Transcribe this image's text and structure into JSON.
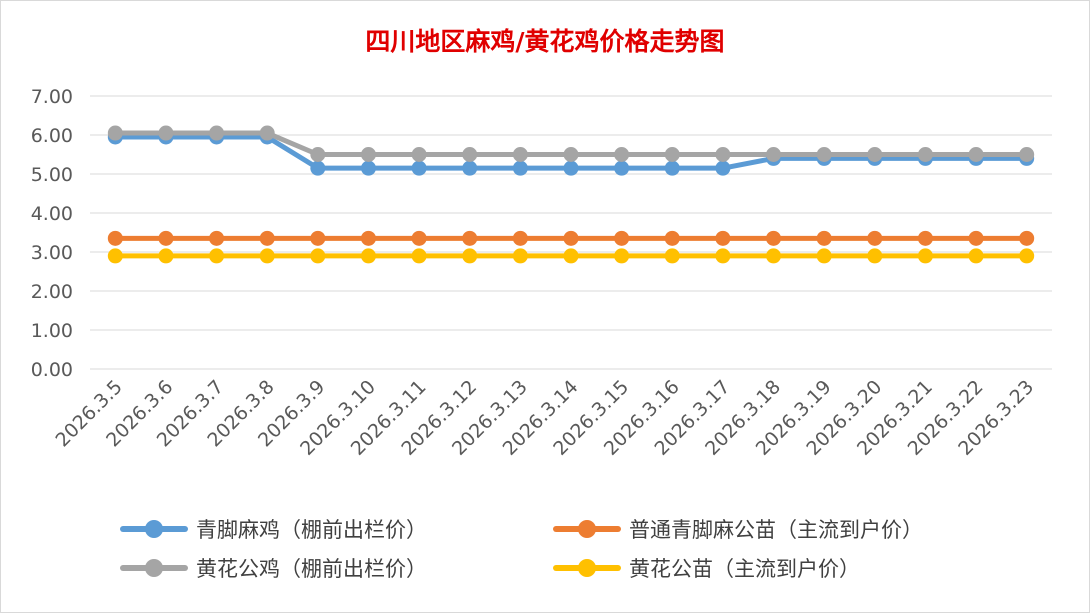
{
  "chart_data": {
    "type": "line",
    "title": "四川地区麻鸡/黄花鸡价格走势图",
    "categories": [
      "2026.3.5",
      "2026.3.6",
      "2026.3.7",
      "2026.3.8",
      "2026.3.9",
      "2026.3.10",
      "2026.3.11",
      "2026.3.12",
      "2026.3.13",
      "2026.3.14",
      "2026.3.15",
      "2026.3.16",
      "2026.3.17",
      "2026.3.18",
      "2026.3.19",
      "2026.3.20",
      "2026.3.21",
      "2026.3.22",
      "2026.3.23"
    ],
    "y_ticks": [
      "0.00",
      "1.00",
      "2.00",
      "3.00",
      "4.00",
      "5.00",
      "6.00",
      "7.00"
    ],
    "ylim": [
      0,
      7
    ],
    "grid": true,
    "legend_position": "bottom",
    "series": [
      {
        "name": "青脚麻鸡（棚前出栏价）",
        "color": "#5b9bd5",
        "values": [
          5.95,
          5.95,
          5.95,
          5.95,
          5.15,
          5.15,
          5.15,
          5.15,
          5.15,
          5.15,
          5.15,
          5.15,
          5.15,
          5.4,
          5.4,
          5.4,
          5.4,
          5.4,
          5.4
        ]
      },
      {
        "name": "普通青脚麻公苗（主流到户价）",
        "color": "#ed7d31",
        "values": [
          3.35,
          3.35,
          3.35,
          3.35,
          3.35,
          3.35,
          3.35,
          3.35,
          3.35,
          3.35,
          3.35,
          3.35,
          3.35,
          3.35,
          3.35,
          3.35,
          3.35,
          3.35,
          3.35
        ]
      },
      {
        "name": "黄花公鸡（棚前出栏价）",
        "color": "#a5a5a5",
        "values": [
          6.05,
          6.05,
          6.05,
          6.05,
          5.5,
          5.5,
          5.5,
          5.5,
          5.5,
          5.5,
          5.5,
          5.5,
          5.5,
          5.5,
          5.5,
          5.5,
          5.5,
          5.5,
          5.5
        ]
      },
      {
        "name": "黄花公苗（主流到户价）",
        "color": "#ffc000",
        "values": [
          2.9,
          2.9,
          2.9,
          2.9,
          2.9,
          2.9,
          2.9,
          2.9,
          2.9,
          2.9,
          2.9,
          2.9,
          2.9,
          2.9,
          2.9,
          2.9,
          2.9,
          2.9,
          2.9
        ]
      }
    ]
  }
}
